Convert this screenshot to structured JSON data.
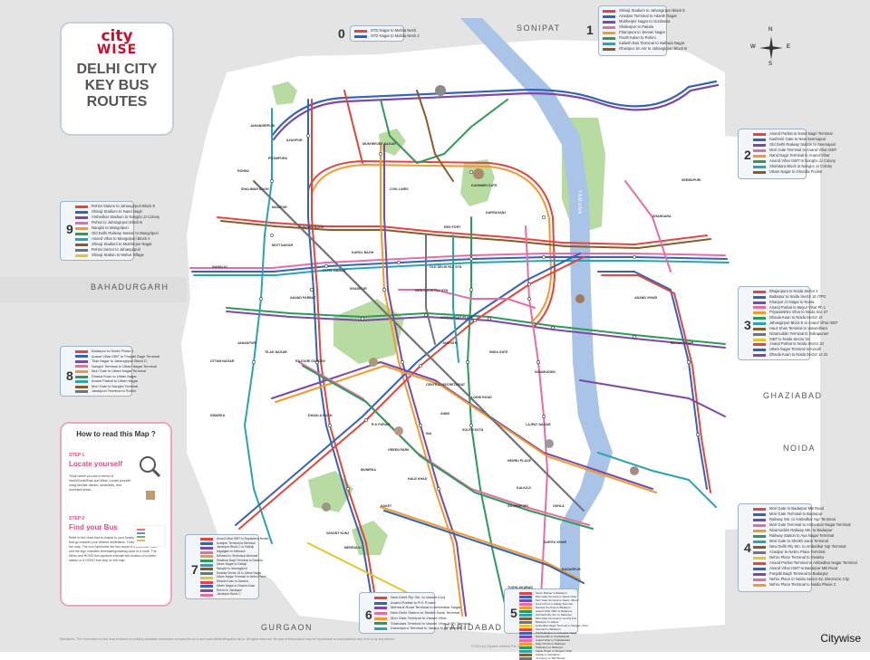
{
  "title": {
    "logo_city": "city",
    "logo_wise": "WISE",
    "line1": "DELHI CITY",
    "line2": "KEY BUS",
    "line3": "ROUTES"
  },
  "regions": {
    "north": "SONIPAT",
    "west": "BAHADURGARH",
    "east": "GHAZIABAD",
    "east2": "NOIDA",
    "south_west": "GURGAON",
    "south": "FARIDABAD"
  },
  "compass": {
    "n": "N",
    "s": "S",
    "e": "E",
    "w": "W"
  },
  "legends": [
    {
      "num": "0",
      "routes": [
        "STD Nagar to Mahila Nesh",
        "STD Nagar to Mahila Nesh 2"
      ]
    },
    {
      "num": "1",
      "routes": [
        "Shivaji Stadium to Jahangirpuri Block E",
        "Azadpur Terminal to Adarsh Nagar",
        "Mukherjee Nagar to Gurdwara",
        "Shakurpur to Patiala",
        "Pitampura to Jeevan Nagar",
        "Pooth Kalan to Rohini",
        "Kailash Bus Terminal to Nathura Nagar",
        "Ghazipur Jin Asr to Jahangirpuri Block B"
      ]
    },
    {
      "num": "2",
      "routes": [
        "Anand Parbat to Nand Nagri Terminal",
        "Kashmiri Gate to New Seemapuri",
        "Old Delhi Railway Station to Seemapuri",
        "Mori Gate Terminal to Anand Vihar ISBT",
        "Nand Nagri Terminal to Anand Vihar",
        "Anand Vihar ISBT to Nangloi JJ Colony",
        "Shahdara Block to Nangloi JJ Colony",
        "Uttam Nagar to Ghonda Pocket"
      ]
    },
    {
      "num": "3",
      "routes": [
        "Bhajanpura to Noida Sector 3",
        "Badarpur to Noida Sector 16 ITPO",
        "Khanpur JJ Nagar to Noida",
        "Anand Parbat to Mayur Vihar Ph 1",
        "Priyadarshini Vihar to Noida Sec 37",
        "Dhaula Kuan to Noida Sector 12",
        "Jahangirpuri Block E to Anand Vihar ISBT",
        "Hauz Khas Terminal to Vasundhara",
        "Nizamuddin Terminal to Indirapuram",
        "ISBT to Noida Sector 34",
        "Anand Parbat to Noida Sector 34",
        "Uttam Nagar Terminal to Kondli",
        "Dhaula Kuan to Noida Sector 12 22"
      ]
    },
    {
      "num": "4",
      "routes": [
        "Mori Gate to Badarpur MB Road",
        "Mori Gate Terminal to Badarpur",
        "Railway Stn. to Ambedkar Ngr Terminal",
        "Mori Gate Terminal to Ambedkar Nagar Terminal",
        "Nizamuddin Railway Stn. to Badarpur",
        "Railway Station to Aya Nagar Terminal",
        "Mori Gate to Sheikh Sarai Terminal",
        "New Delhi Rly Stn. to Ambedkar Ngr Terminal",
        "Azadpur to Nehru Place Terminal",
        "Nehru Place Terminal to Dwarka",
        "Anand Parbat Terminal to Ambedkar Nagar Terminal",
        "Anand Vihar ISBT to Badarpur MB Road",
        "Punjabi Bagh Terminal to Badarpur",
        "Nehru Place to Noida Sector 62, Electronic City",
        "Nehru Place Terminal to Noida Phase 2"
      ]
    },
    {
      "num": "5",
      "routes": [
        "Super Bazaar to Badarpur",
        "Mori Gate Terminal to Sarita Vihar",
        "Mori Gate Terminal to Saket J Block",
        "Govind Puri to Kalkaji Terminal",
        "Dwarka Terminal to Badarpur",
        "Anand Vihar ISBT to Badarpur",
        "Old Delhi Rly Stn. to Badarpur",
        "Mori Gate Terminal to Govind Puri",
        "Badarpur to Jaitpur",
        "Ambedkar Nagar Terminal to Sangam Vihar",
        "Mehrauli to Badarpur",
        "Pul Pehladpur to Ambedkar Nagar",
        "Nizamuddin to Tughlakabad",
        "Anand Vihar to Tughlakabad",
        "Rajiv Chowk to Badarpur",
        "Shakurpur to Badarpur",
        "Lajpat Nagar to Sangam Vihar",
        "Kalkaji to Faridabad",
        "JJ Colony to Tikri Border"
      ]
    },
    {
      "num": "6",
      "routes": [
        "New Delhi Rly Stn. to Vasant Kunj",
        "Anand Parbat to R K Puram",
        "Mehrauli Road Terminal to Ambedkar Nagar",
        "New Delhi Station to Sheikh Sarai Terminal",
        "Mori Gate Terminal to Vasant Vihar",
        "Shahdara Terminal to Vasant Vihar (VIP) Terminal",
        "Karampura Terminal to Vasant Kunj Terminal 2"
      ]
    },
    {
      "num": "7",
      "routes": [
        "Anand Vihar ISBT to Kapashera Border",
        "Azadpur Terminal to Mehrauli",
        "Janakpuri Block C to Kalkaji",
        "Najafgarh to Mehrauli",
        "Mehrauli to Shahdara Mehrauli",
        "Shalimar Bagh Terminal to Dwarka",
        "Uttam Nagar to Kalkaji",
        "Nangloi to Jahangirpuri",
        "Dwarka Sector 16 to Uttam Nagar",
        "Uttam Nagar Terminal to Nehru Place",
        "Dhaula Kuan to Dwarka",
        "Uttam Nagar to Dhaula Kuan",
        "Rohini to Janakpuri",
        "Janakpuri Block C"
      ]
    },
    {
      "num": "8",
      "routes": [
        "Badarpur to Noida Phase 1",
        "Anand Vihar ISBT to Punjabi Bagh Terminal",
        "Tilak Nagar to Jahangirpuri Block D",
        "Nangloi Terminal to Uttam Nagar Terminal",
        "Mori Gate to Uttam Nagar Terminal",
        "Dhaula Kuan to Uttam Nagar",
        "Anand Parbat to Uttam Nagar",
        "Mori Gate to Nangloi Terminal",
        "Janakpuri Terminal to Rohini"
      ]
    },
    {
      "num": "9",
      "routes": [
        "Rohini Station to Jahangirpuri Block E",
        "Shivaji Stadium to Nand Nagri",
        "Ambedkar Stadium to Nangloi JJ Colony",
        "Rohini to Jahangirpuri Block B",
        "Nangloi to Mangolpuri",
        "Old Delhi Railway Station to Mangolpuri",
        "Anand Vihar to Mangolpuri Block A",
        "Shivaji Stadium to Mukherjee Nagar",
        "Rohini Sector to Jahangirpuri",
        "Shivaji Station to Mehar Village"
      ]
    }
  ],
  "how_to": {
    "title": "How to read this Map ?",
    "step1_label": "STEP 1",
    "step1_title": "Locate yourself",
    "step1_text": "Think where you are in terms of North/South/East and West. Locate yourself using familiar names, landmarks, and dominant areas.",
    "step2_label": "STEP 2",
    "step2_title": "Find your Bus",
    "step2_text": "Refer to the chart that is closest to your location. Look for buses that go towards your desired destination. Follow the route line on the map. The icon symbolise the bus stops of a particular route, and the sign indicates terminating/starting point of a route. The Metro and HOHO bus symbols indicate the location of a metro station or a HOHO bus stop on the map."
  },
  "river": "YAMUNA",
  "places": [
    "JAHANGIRPURI",
    "AZADPUR",
    "ROHINI",
    "MADIPUR",
    "PUNJABI BAGH",
    "MOTI NAGAR",
    "ANAND PARBAT",
    "KAROL BAGH",
    "OLD DELHI RLY STN",
    "RED FORT",
    "DARYAGANJ",
    "NEW DELHI RLY STN",
    "CONNAUGHT PLACE",
    "JANPATH",
    "INDIA GATE",
    "CENTRAL SECRETARIAT",
    "LODHI ROAD",
    "NIZAMUDDIN",
    "LAJPAT NAGAR",
    "SOUTH EXTN",
    "NEHRU PLACE",
    "KALKAJI",
    "OKHLA",
    "GOVINDPURI",
    "HAUZ KHAS",
    "SAKET",
    "MEHRAULI",
    "VASANT KUNJ",
    "R K PURAM",
    "DHAULA KUAN",
    "JANAKPURI",
    "UTTAM NAGAR",
    "NANGLOI",
    "SHAHDARA",
    "ANAND VIHAR",
    "MAYUR VIHAR",
    "BADARPUR",
    "SARITA VIHAR",
    "TUGHLAKABAD",
    "DWARKA",
    "SEEMAPURI",
    "KASHMIRI GATE",
    "CIVIL LINES",
    "MUKHERJEE NAGAR",
    "PITAMPURA",
    "SHALIMAR BAGH",
    "TILAK NAGAR",
    "RAJOURI GARDEN",
    "PATEL NAGAR",
    "SHADIPUR",
    "INA",
    "AIIMS",
    "GREEN PARK",
    "MUNIRKA"
  ],
  "footer": "Disclaimer: The information on the map is based on publicly available information on www.dtc.nic.in and www.delhitrafficpolice.nic.in. All rights reserved. No part of this product may be reproduced or transmitted in any form or by any means.",
  "copyright": "© 2011 by Citywise Infotech Pvt. Ltd.",
  "brand": "Citywise",
  "colors": {
    "river": "#a9c4e6",
    "land": "#ffffff",
    "outside": "#e4e4e4",
    "park": "#b7dba1",
    "line_red": "#e2463f",
    "line_blue": "#3563b8",
    "line_purple": "#7a4aa8",
    "line_pink": "#e36fa5",
    "line_orange": "#f29a2e",
    "line_green": "#2f9a58",
    "line_teal": "#2aa4b2",
    "line_brown": "#8b5a2b",
    "line_gray": "#6d7680",
    "line_yellow": "#e4c52a"
  }
}
